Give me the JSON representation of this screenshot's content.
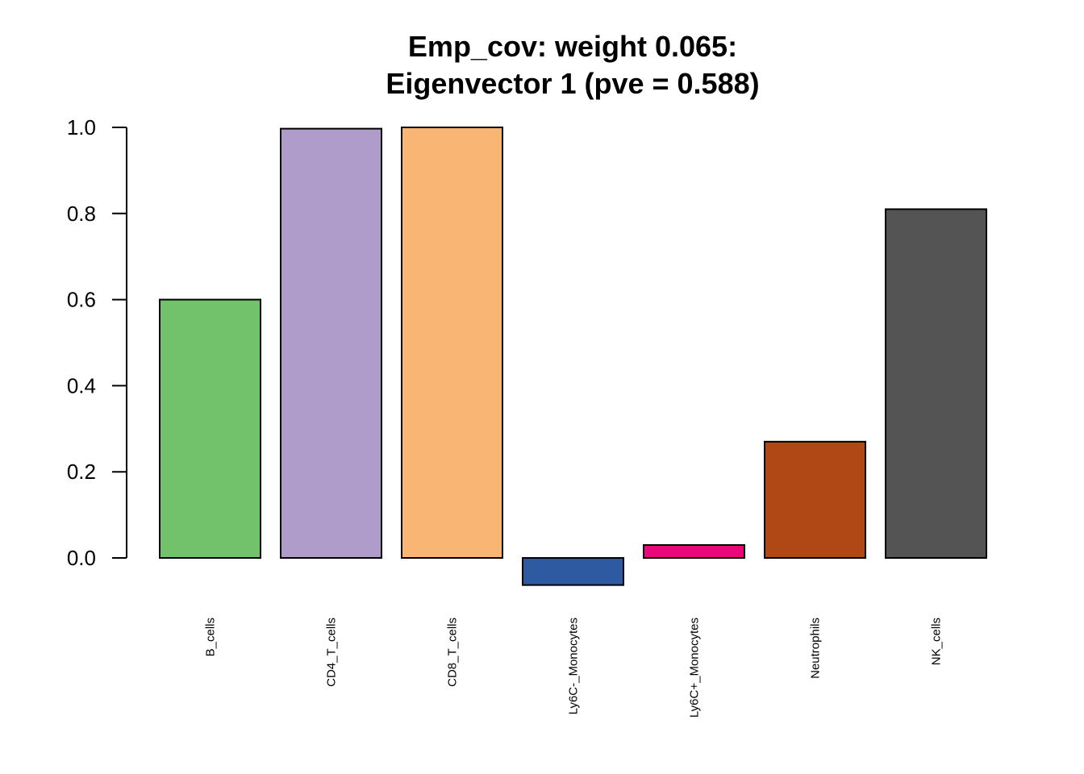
{
  "chart_data": {
    "type": "bar",
    "title": "Emp_cov: weight 0.065:",
    "subtitle": "Eigenvector 1 (pve = 0.588)",
    "xlabel": "",
    "ylabel": "",
    "categories": [
      "B_cells",
      "CD4_T_cells",
      "CD8_T_cells",
      "Ly6C-_Monocytes",
      "Ly6C+_Monocytes",
      "Neutrophils",
      "NK_cells"
    ],
    "values": [
      0.6,
      0.997,
      1.0,
      -0.063,
      0.03,
      0.27,
      0.81
    ],
    "colors": [
      "#72c26c",
      "#af9ccb",
      "#f9b574",
      "#2e5aa2",
      "#e8087b",
      "#b04815",
      "#545454"
    ],
    "ylim": [
      -0.063,
      1.0
    ],
    "yticks": [
      0.0,
      0.2,
      0.4,
      0.6,
      0.8,
      1.0
    ],
    "ytick_labels": [
      "0.0",
      "0.2",
      "0.4",
      "0.6",
      "0.8",
      "1.0"
    ],
    "grid": false,
    "legend": "none"
  }
}
